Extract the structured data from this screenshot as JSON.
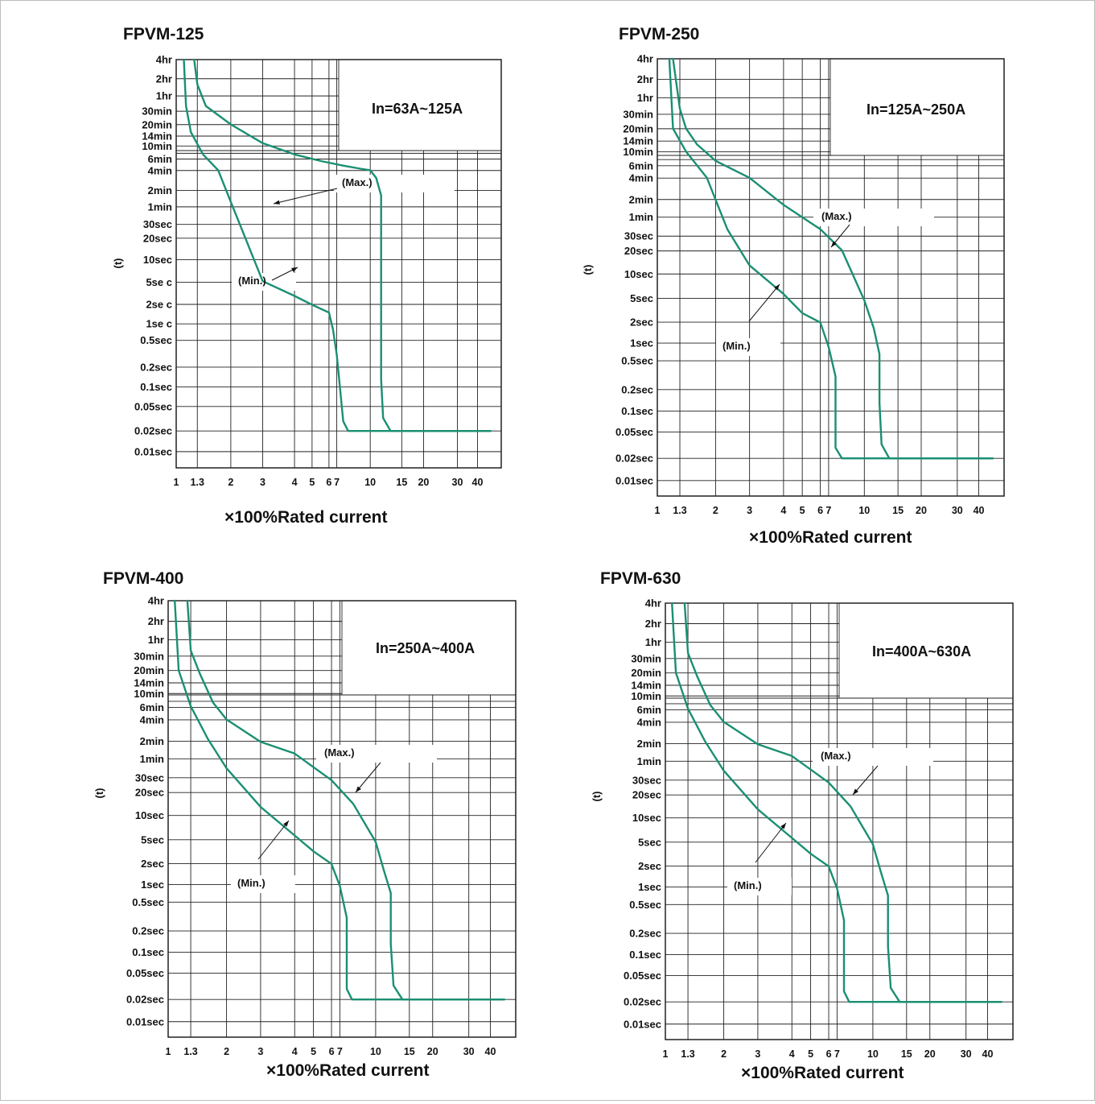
{
  "chart_data": [
    {
      "type": "line",
      "title": "FPVM-125",
      "rating": "In=63A~125A",
      "xlabel": "×100%Rated current",
      "ylabel": "(t)",
      "x_ticks": [
        "1",
        "1.3",
        "2",
        "3",
        "4",
        "5",
        "6",
        "7",
        "10",
        "15",
        "20",
        "30",
        "40"
      ],
      "y_ticks": [
        "4hr",
        "2hr",
        "1hr",
        "30min",
        "20min",
        "14min",
        "10min",
        "6min",
        "4min",
        "2min",
        "1min",
        "30sec",
        "20sec",
        "10sec",
        "5se c",
        "2se c",
        "1se c",
        "0.5sec",
        "0.2sec",
        "0.1sec",
        "0.05sec",
        "0.02sec",
        "0.01sec"
      ],
      "annotations": {
        "max": "(Max.)",
        "min": "(Min.)"
      },
      "series": [
        {
          "name": "(Max.)",
          "points": [
            [
              1.25,
              4
            ],
            [
              1.3,
              3
            ],
            [
              1.45,
              2
            ],
            [
              2.0,
              1
            ],
            [
              3.0,
              -0.3
            ],
            [
              4.0,
              -1.0
            ],
            [
              5.5,
              -1.4
            ],
            [
              7.5,
              -1.7
            ],
            [
              9.0,
              -1.9
            ],
            [
              10.0,
              -2.0
            ],
            [
              10.8,
              -2.3
            ],
            [
              11.5,
              -3
            ],
            [
              11.5,
              -10
            ],
            [
              11.8,
              -11.4
            ],
            [
              13.0,
              -11.8
            ],
            [
              15,
              -11.8
            ],
            [
              50,
              -11.8
            ]
          ]
        },
        {
          "name": "(Min.)",
          "points": [
            [
              1.1,
              4
            ],
            [
              1.13,
              2
            ],
            [
              1.2,
              0.5
            ],
            [
              1.4,
              -1
            ],
            [
              1.7,
              -2
            ],
            [
              2.0,
              -3.3
            ],
            [
              3.0,
              -6.5
            ],
            [
              4.0,
              -7.0
            ],
            [
              5.0,
              -7.3
            ],
            [
              6.0,
              -7.6
            ],
            [
              6.5,
              -8.3
            ],
            [
              7.0,
              -9.2
            ],
            [
              7.5,
              -11.5
            ],
            [
              7.9,
              -11.8
            ],
            [
              8.8,
              -11.8
            ],
            [
              50,
              -11.8
            ]
          ]
        }
      ]
    },
    {
      "type": "line",
      "title": "FPVM-250",
      "rating": "In=125A~250A",
      "xlabel": "×100%Rated current",
      "ylabel": "(t)",
      "x_ticks": [
        "1",
        "1.3",
        "2",
        "3",
        "4",
        "5",
        "6",
        "7",
        "10",
        "15",
        "20",
        "30",
        "40"
      ],
      "y_ticks": [
        "4hr",
        "2hr",
        "1hr",
        "30min",
        "20min",
        "14min",
        "10min",
        "6min",
        "4min",
        "2min",
        "1min",
        "30sec",
        "20sec",
        "10sec",
        "5sec",
        "2sec",
        "1sec",
        "0.5sec",
        "0.2sec",
        "0.1sec",
        "0.05sec",
        "0.02sec",
        "0.01sec"
      ],
      "annotations": {
        "max": "(Max.)",
        "min": "(Min.)"
      },
      "series": [
        {
          "name": "(Max.)",
          "points": [
            [
              1.2,
              4
            ],
            [
              1.3,
              2
            ],
            [
              1.4,
              1
            ],
            [
              1.6,
              0
            ],
            [
              2.0,
              -1
            ],
            [
              3.0,
              -2
            ],
            [
              4.0,
              -3
            ],
            [
              6.0,
              -4
            ],
            [
              8.0,
              -5
            ],
            [
              10.0,
              -6.6
            ],
            [
              11.2,
              -7.5
            ],
            [
              12.0,
              -8.5
            ],
            [
              12.0,
              -10
            ],
            [
              12.3,
              -11.4
            ],
            [
              13.5,
              -11.8
            ],
            [
              15,
              -11.8
            ],
            [
              50,
              -11.8
            ]
          ]
        },
        {
          "name": "(Min.)",
          "points": [
            [
              1.15,
              4
            ],
            [
              1.2,
              1
            ],
            [
              1.4,
              -0.5
            ],
            [
              1.8,
              -2
            ],
            [
              2.3,
              -4
            ],
            [
              3.0,
              -5.5
            ],
            [
              4.0,
              -6.4
            ],
            [
              5.0,
              -7.0
            ],
            [
              6.0,
              -7.3
            ],
            [
              7.0,
              -8.2
            ],
            [
              7.5,
              -9.2
            ],
            [
              7.5,
              -11.5
            ],
            [
              8.0,
              -11.8
            ],
            [
              9.5,
              -11.8
            ],
            [
              50,
              -11.8
            ]
          ]
        }
      ]
    },
    {
      "type": "line",
      "title": "FPVM-400",
      "rating": "In=250A~400A",
      "xlabel": "×100%Rated current",
      "ylabel": "(t)",
      "x_ticks": [
        "1",
        "1.3",
        "2",
        "3",
        "4",
        "5",
        "6",
        "7",
        "10",
        "15",
        "20",
        "30",
        "40"
      ],
      "y_ticks": [
        "4hr",
        "2hr",
        "1hr",
        "30min",
        "20min",
        "14min",
        "10min",
        "6min",
        "4min",
        "2min",
        "1min",
        "30sec",
        "20sec",
        "10sec",
        "5sec",
        "2sec",
        "1sec",
        "0.5sec",
        "0.2sec",
        "0.1sec",
        "0.05sec",
        "0.02sec",
        "0.01sec"
      ],
      "annotations": {
        "max": "(Max.)",
        "min": "(Min.)"
      },
      "series": [
        {
          "name": "(Max.)",
          "points": [
            [
              1.25,
              4
            ],
            [
              1.3,
              2
            ],
            [
              1.45,
              0.8
            ],
            [
              1.7,
              -1
            ],
            [
              2.0,
              -2
            ],
            [
              3.0,
              -2.8
            ],
            [
              4.0,
              -3.3
            ],
            [
              6.0,
              -4.4
            ],
            [
              8.0,
              -5.4
            ],
            [
              10.0,
              -6.6
            ],
            [
              11.0,
              -7.5
            ],
            [
              12.0,
              -8.4
            ],
            [
              12.0,
              -10
            ],
            [
              12.4,
              -11.4
            ],
            [
              13.8,
              -11.8
            ],
            [
              15,
              -11.8
            ],
            [
              50,
              -11.8
            ]
          ]
        },
        {
          "name": "(Min.)",
          "points": [
            [
              1.08,
              4
            ],
            [
              1.13,
              1
            ],
            [
              1.3,
              -1.2
            ],
            [
              1.6,
              -2.7
            ],
            [
              2.0,
              -3.9
            ],
            [
              3.0,
              -5.5
            ],
            [
              4.0,
              -6.4
            ],
            [
              5.0,
              -6.9
            ],
            [
              6.0,
              -7.3
            ],
            [
              7.0,
              -8.1
            ],
            [
              7.5,
              -9.2
            ],
            [
              7.5,
              -11.5
            ],
            [
              7.9,
              -11.8
            ],
            [
              9.5,
              -11.8
            ],
            [
              50,
              -11.8
            ]
          ]
        }
      ]
    },
    {
      "type": "line",
      "title": "FPVM-630",
      "rating": "In=400A~630A",
      "xlabel": "×100%Rated current",
      "ylabel": "(t)",
      "x_ticks": [
        "1",
        "1.3",
        "2",
        "3",
        "4",
        "5",
        "6",
        "7",
        "10",
        "15",
        "20",
        "30",
        "40"
      ],
      "y_ticks": [
        "4hr",
        "2hr",
        "1hr",
        "30min",
        "20min",
        "14min",
        "10min",
        "6min",
        "4min",
        "2min",
        "1min",
        "30sec",
        "20sec",
        "10sec",
        "5sec",
        "2sec",
        "1sec",
        "0.5sec",
        "0.2sec",
        "0.1sec",
        "0.05sec",
        "0.02sec",
        "0.01sec"
      ],
      "annotations": {
        "max": "(Max.)",
        "min": "(Min.)"
      },
      "series": [
        {
          "name": "(Max.)",
          "points": [
            [
              1.25,
              4
            ],
            [
              1.3,
              2
            ],
            [
              1.45,
              0.8
            ],
            [
              1.7,
              -1
            ],
            [
              2.0,
              -2
            ],
            [
              3.0,
              -2.8
            ],
            [
              4.0,
              -3.3
            ],
            [
              6.0,
              -4.4
            ],
            [
              8.0,
              -5.4
            ],
            [
              10.0,
              -6.6
            ],
            [
              11.0,
              -7.5
            ],
            [
              12.0,
              -8.4
            ],
            [
              12.0,
              -10
            ],
            [
              12.4,
              -11.4
            ],
            [
              13.8,
              -11.8
            ],
            [
              15,
              -11.8
            ],
            [
              50,
              -11.8
            ]
          ]
        },
        {
          "name": "(Min.)",
          "points": [
            [
              1.08,
              4
            ],
            [
              1.13,
              1
            ],
            [
              1.3,
              -1.2
            ],
            [
              1.6,
              -2.7
            ],
            [
              2.0,
              -3.9
            ],
            [
              3.0,
              -5.5
            ],
            [
              4.0,
              -6.4
            ],
            [
              5.0,
              -6.9
            ],
            [
              6.0,
              -7.3
            ],
            [
              7.0,
              -8.1
            ],
            [
              7.5,
              -9.2
            ],
            [
              7.5,
              -11.5
            ],
            [
              7.9,
              -11.8
            ],
            [
              9.5,
              -11.8
            ],
            [
              50,
              -11.8
            ]
          ]
        }
      ]
    }
  ]
}
